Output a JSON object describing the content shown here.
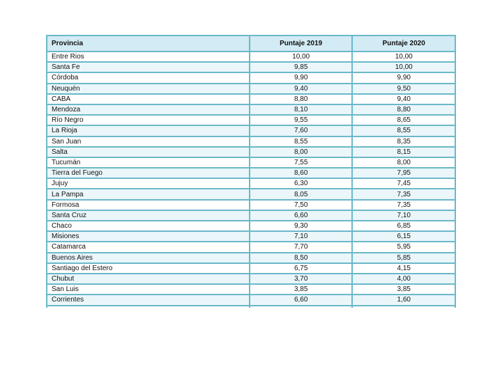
{
  "table": {
    "headers": [
      "Provincia",
      "Puntaje 2019",
      "Puntaje 2020"
    ],
    "rows": [
      [
        "Entre Rios",
        "10,00",
        "10,00"
      ],
      [
        "Santa Fe",
        "9,85",
        "10,00"
      ],
      [
        "Córdoba",
        "9,90",
        "9,90"
      ],
      [
        "Neuquén",
        "9,40",
        "9,50"
      ],
      [
        "CABA",
        "8,80",
        "9,40"
      ],
      [
        "Mendoza",
        "8,10",
        "8,80"
      ],
      [
        "Río Negro",
        "9,55",
        "8,65"
      ],
      [
        "La Rioja",
        "7,60",
        "8,55"
      ],
      [
        "San Juan",
        "8,55",
        "8,35"
      ],
      [
        "Salta",
        "8,00",
        "8,15"
      ],
      [
        "Tucumán",
        "7,55",
        "8,00"
      ],
      [
        "Tierra del Fuego",
        "8,60",
        "7,95"
      ],
      [
        "Jujuy",
        "6,30",
        "7,45"
      ],
      [
        "La Pampa",
        "8,05",
        "7,35"
      ],
      [
        "Formosa",
        "7,50",
        "7,35"
      ],
      [
        "Santa Cruz",
        "6,60",
        "7,10"
      ],
      [
        "Chaco",
        "9,30",
        "6,85"
      ],
      [
        "Misiones",
        "7,10",
        "6,15"
      ],
      [
        "Catamarca",
        "7,70",
        "5,95"
      ],
      [
        "Buenos Aires",
        "8,50",
        "5,85"
      ],
      [
        "Santiago del Estero",
        "6,75",
        "4,15"
      ],
      [
        "Chubut",
        "3,70",
        "4,00"
      ],
      [
        "San Luis",
        "3,85",
        "3,85"
      ],
      [
        "Corrientes",
        "6,60",
        "1,60"
      ]
    ],
    "colors": {
      "border": "#6bb8c9",
      "header_bg": "#d2ebf4",
      "alt_row_bg": "#eaf6fa"
    }
  }
}
